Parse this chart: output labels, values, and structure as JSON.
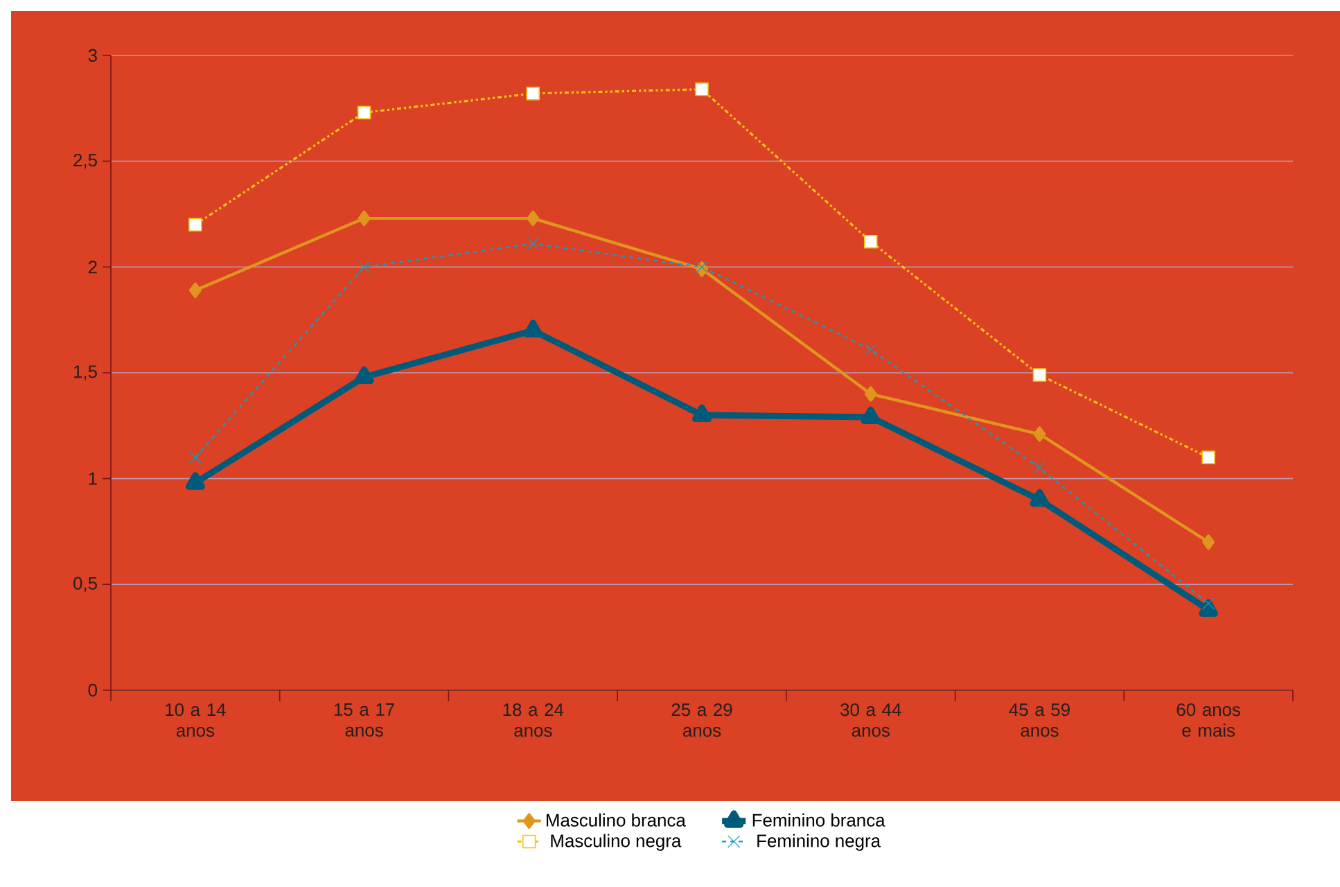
{
  "chart_data": {
    "type": "line",
    "categories": [
      "10 a 14 anos",
      "15 a 17 anos",
      "18 a 24 anos",
      "25 a 29 anos",
      "30 a 44 anos",
      "45 a 59 anos",
      "60 anos e mais"
    ],
    "series": [
      {
        "name": "Masculino branca",
        "color": "#e0961e",
        "marker": "diamond",
        "line_style": "solid",
        "values": [
          1.89,
          2.23,
          2.23,
          1.99,
          1.4,
          1.21,
          0.7
        ]
      },
      {
        "name": "Feminino branca",
        "color": "#005a7a",
        "marker": "triangle",
        "line_style": "solid",
        "values": [
          0.98,
          1.48,
          1.7,
          1.3,
          1.29,
          0.9,
          0.38
        ]
      },
      {
        "name": "Masculino negra",
        "color": "#f5c518",
        "marker": "square",
        "line_style": "dotted",
        "values": [
          2.2,
          2.73,
          2.82,
          2.84,
          2.12,
          1.49,
          1.1
        ]
      },
      {
        "name": "Feminino negra",
        "color": "#1a9ac0",
        "marker": "cross",
        "line_style": "dashed",
        "values": [
          1.1,
          2.0,
          2.11,
          2.0,
          1.61,
          1.05,
          0.41
        ]
      }
    ],
    "ylim": [
      0,
      3
    ],
    "yticks": [
      0,
      {
        "value": 0.5,
        "label": "0,5"
      },
      1,
      {
        "value": 1.5,
        "label": "1,5"
      },
      2,
      {
        "value": 2.5,
        "label": "2,5"
      },
      3
    ],
    "grid": "y",
    "legend": "bottom"
  }
}
